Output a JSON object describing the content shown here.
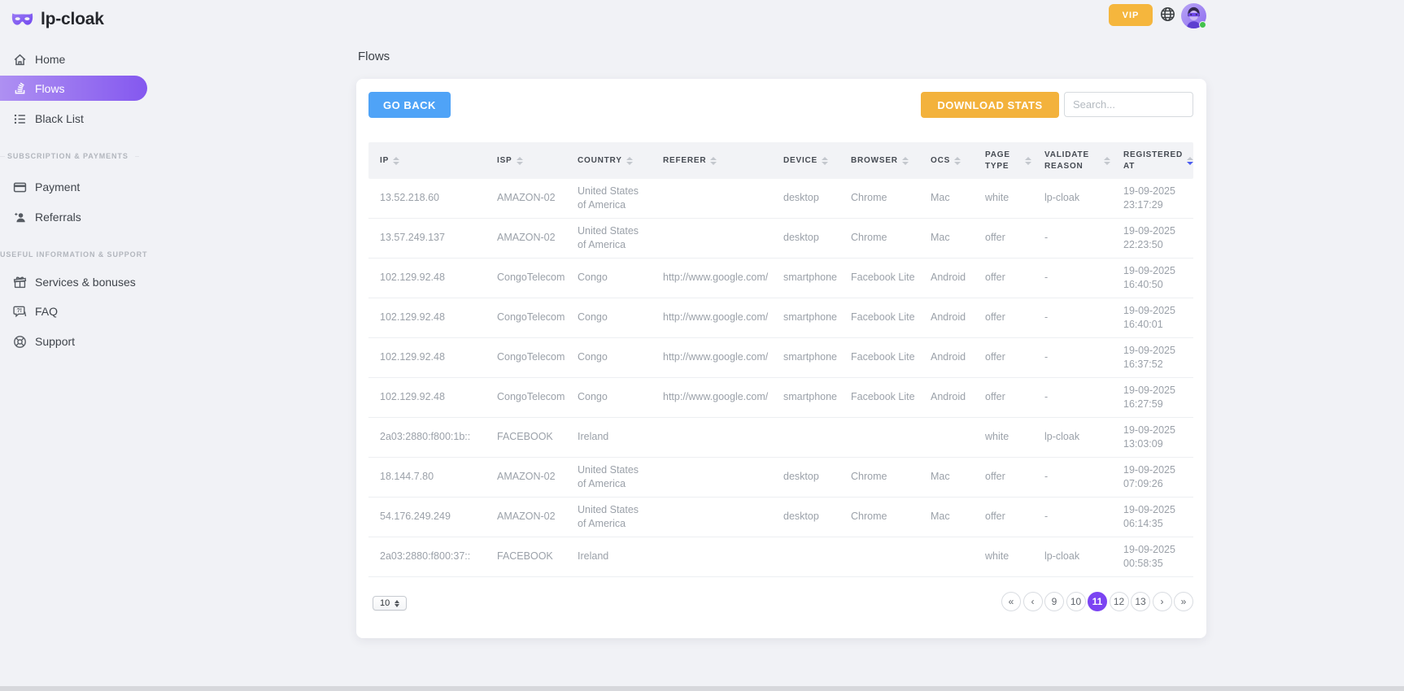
{
  "brand": {
    "name": "lp-cloak"
  },
  "topbar": {
    "vip_label": "VIP"
  },
  "sidebar": {
    "main_items": [
      {
        "label": "Home",
        "active": false
      },
      {
        "label": "Flows",
        "active": true
      },
      {
        "label": "Black List",
        "active": false
      }
    ],
    "sections": [
      {
        "label": "SUBSCRIPTION & PAYMENTS",
        "items": [
          {
            "label": "Payment"
          },
          {
            "label": "Referrals"
          }
        ]
      },
      {
        "label": "USEFUL INFORMATION & SUPPORT",
        "items": [
          {
            "label": "Services & bonuses"
          },
          {
            "label": "FAQ"
          },
          {
            "label": "Support"
          }
        ]
      }
    ]
  },
  "page": {
    "title": "Flows"
  },
  "toolbar": {
    "go_back_label": "GO BACK",
    "download_stats_label": "DOWNLOAD STATS",
    "search_placeholder": "Search..."
  },
  "table": {
    "columns": [
      {
        "label": "IP"
      },
      {
        "label": "ISP"
      },
      {
        "label": "COUNTRY"
      },
      {
        "label": "REFERER"
      },
      {
        "label": "DEVICE"
      },
      {
        "label": "BROWSER"
      },
      {
        "label": "OCS"
      },
      {
        "label": "PAGE TYPE"
      },
      {
        "label": "VALIDATE REASON"
      },
      {
        "label": "REGISTERED AT",
        "sort_desc": true
      }
    ],
    "rows": [
      {
        "cells": [
          "13.52.218.60",
          "AMAZON-02",
          "United States of America",
          "",
          "desktop",
          "Chrome",
          "Mac",
          "white",
          "lp-cloak",
          "19-09-2025\n23:17:29"
        ]
      },
      {
        "cells": [
          "13.57.249.137",
          "AMAZON-02",
          "United States of America",
          "",
          "desktop",
          "Chrome",
          "Mac",
          "offer",
          "-",
          "19-09-2025\n22:23:50"
        ]
      },
      {
        "cells": [
          "102.129.92.48",
          "CongoTelecom",
          "Congo",
          "http://www.google.com/",
          "smartphone",
          "Facebook Lite",
          "Android",
          "offer",
          "-",
          "19-09-2025\n16:40:50"
        ]
      },
      {
        "cells": [
          "102.129.92.48",
          "CongoTelecom",
          "Congo",
          "http://www.google.com/",
          "smartphone",
          "Facebook Lite",
          "Android",
          "offer",
          "-",
          "19-09-2025\n16:40:01"
        ]
      },
      {
        "cells": [
          "102.129.92.48",
          "CongoTelecom",
          "Congo",
          "http://www.google.com/",
          "smartphone",
          "Facebook Lite",
          "Android",
          "offer",
          "-",
          "19-09-2025\n16:37:52"
        ]
      },
      {
        "cells": [
          "102.129.92.48",
          "CongoTelecom",
          "Congo",
          "http://www.google.com/",
          "smartphone",
          "Facebook Lite",
          "Android",
          "offer",
          "-",
          "19-09-2025\n16:27:59"
        ]
      },
      {
        "cells": [
          "2a03:2880:f800:1b::",
          "FACEBOOK",
          "Ireland",
          "",
          "",
          "",
          "",
          "white",
          "lp-cloak",
          "19-09-2025\n13:03:09"
        ]
      },
      {
        "cells": [
          "18.144.7.80",
          "AMAZON-02",
          "United States of America",
          "",
          "desktop",
          "Chrome",
          "Mac",
          "offer",
          "-",
          "19-09-2025\n07:09:26"
        ]
      },
      {
        "cells": [
          "54.176.249.249",
          "AMAZON-02",
          "United States of America",
          "",
          "desktop",
          "Chrome",
          "Mac",
          "offer",
          "-",
          "19-09-2025\n06:14:35"
        ]
      },
      {
        "cells": [
          "2a03:2880:f800:37::",
          "FACEBOOK",
          "Ireland",
          "",
          "",
          "",
          "",
          "white",
          "lp-cloak",
          "19-09-2025\n00:58:35"
        ]
      }
    ]
  },
  "footer": {
    "page_size": "10",
    "pagination": [
      {
        "label": "«"
      },
      {
        "label": "‹"
      },
      {
        "label": "9"
      },
      {
        "label": "10"
      },
      {
        "label": "11",
        "active": true
      },
      {
        "label": "12"
      },
      {
        "label": "13"
      },
      {
        "label": "›"
      },
      {
        "label": "»"
      }
    ]
  },
  "icons": [
    "mask-logo-icon",
    "home-icon",
    "flows-icon",
    "blacklist-icon",
    "payment-icon",
    "referrals-icon",
    "gift-icon",
    "faq-icon",
    "support-icon",
    "globe-icon",
    "avatar",
    "sort-icon",
    "page-size-stepper-icon"
  ],
  "colors": {
    "page_bg": "#f1f2f6",
    "brand_purple": "#8160f2",
    "active_gradient_start": "#ae90f2",
    "active_gradient_end": "#8458ef",
    "accent_blue": "#4fa3f7",
    "accent_orange": "#f3b23c",
    "pagination_purple": "#7b44f2",
    "sort_active_blue": "#4b5cf0",
    "status_green": "#43c24c"
  }
}
